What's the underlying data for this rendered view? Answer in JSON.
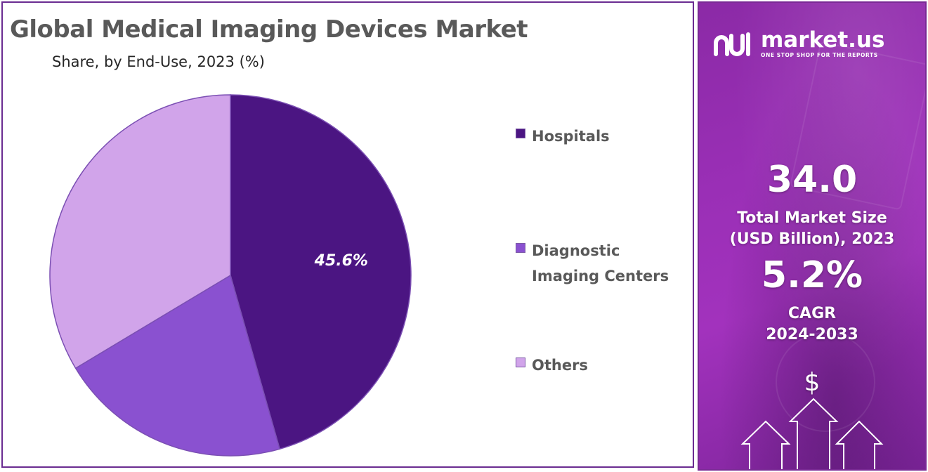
{
  "chart_data": {
    "type": "pie",
    "title": "Global Medical Imaging Devices Market",
    "subtitle": "Share, by End-Use, 2023 (%)",
    "categories": [
      "Hospitals",
      "Diagnostic Imaging Centers",
      "Others"
    ],
    "values": [
      45.6,
      20.8,
      33.6
    ],
    "data_labels": [
      "45.6%",
      "",
      ""
    ],
    "colors": [
      "#4b1582",
      "#8a51d0",
      "#d1a4ea"
    ],
    "start_angle_deg": 0,
    "direction": "clockwise",
    "legend_position": "right"
  },
  "legend": {
    "items": [
      {
        "label": "Hospitals",
        "color": "#4b1582"
      },
      {
        "label": "Diagnostic\nImaging Centers",
        "color": "#8a51d0"
      },
      {
        "label": "Others",
        "color": "#d1a4ea"
      }
    ]
  },
  "sidebar": {
    "logo_text": "market.us",
    "logo_tagline": "ONE STOP SHOP FOR THE REPORTS",
    "market_size_value": "34.0",
    "market_size_label_line1": "Total Market Size",
    "market_size_label_line2": "(USD Billion), 2023",
    "cagr_value": "5.2%",
    "cagr_label_line1": "CAGR",
    "cagr_label_line2": "2024-2033",
    "dollar_sign": "$"
  }
}
